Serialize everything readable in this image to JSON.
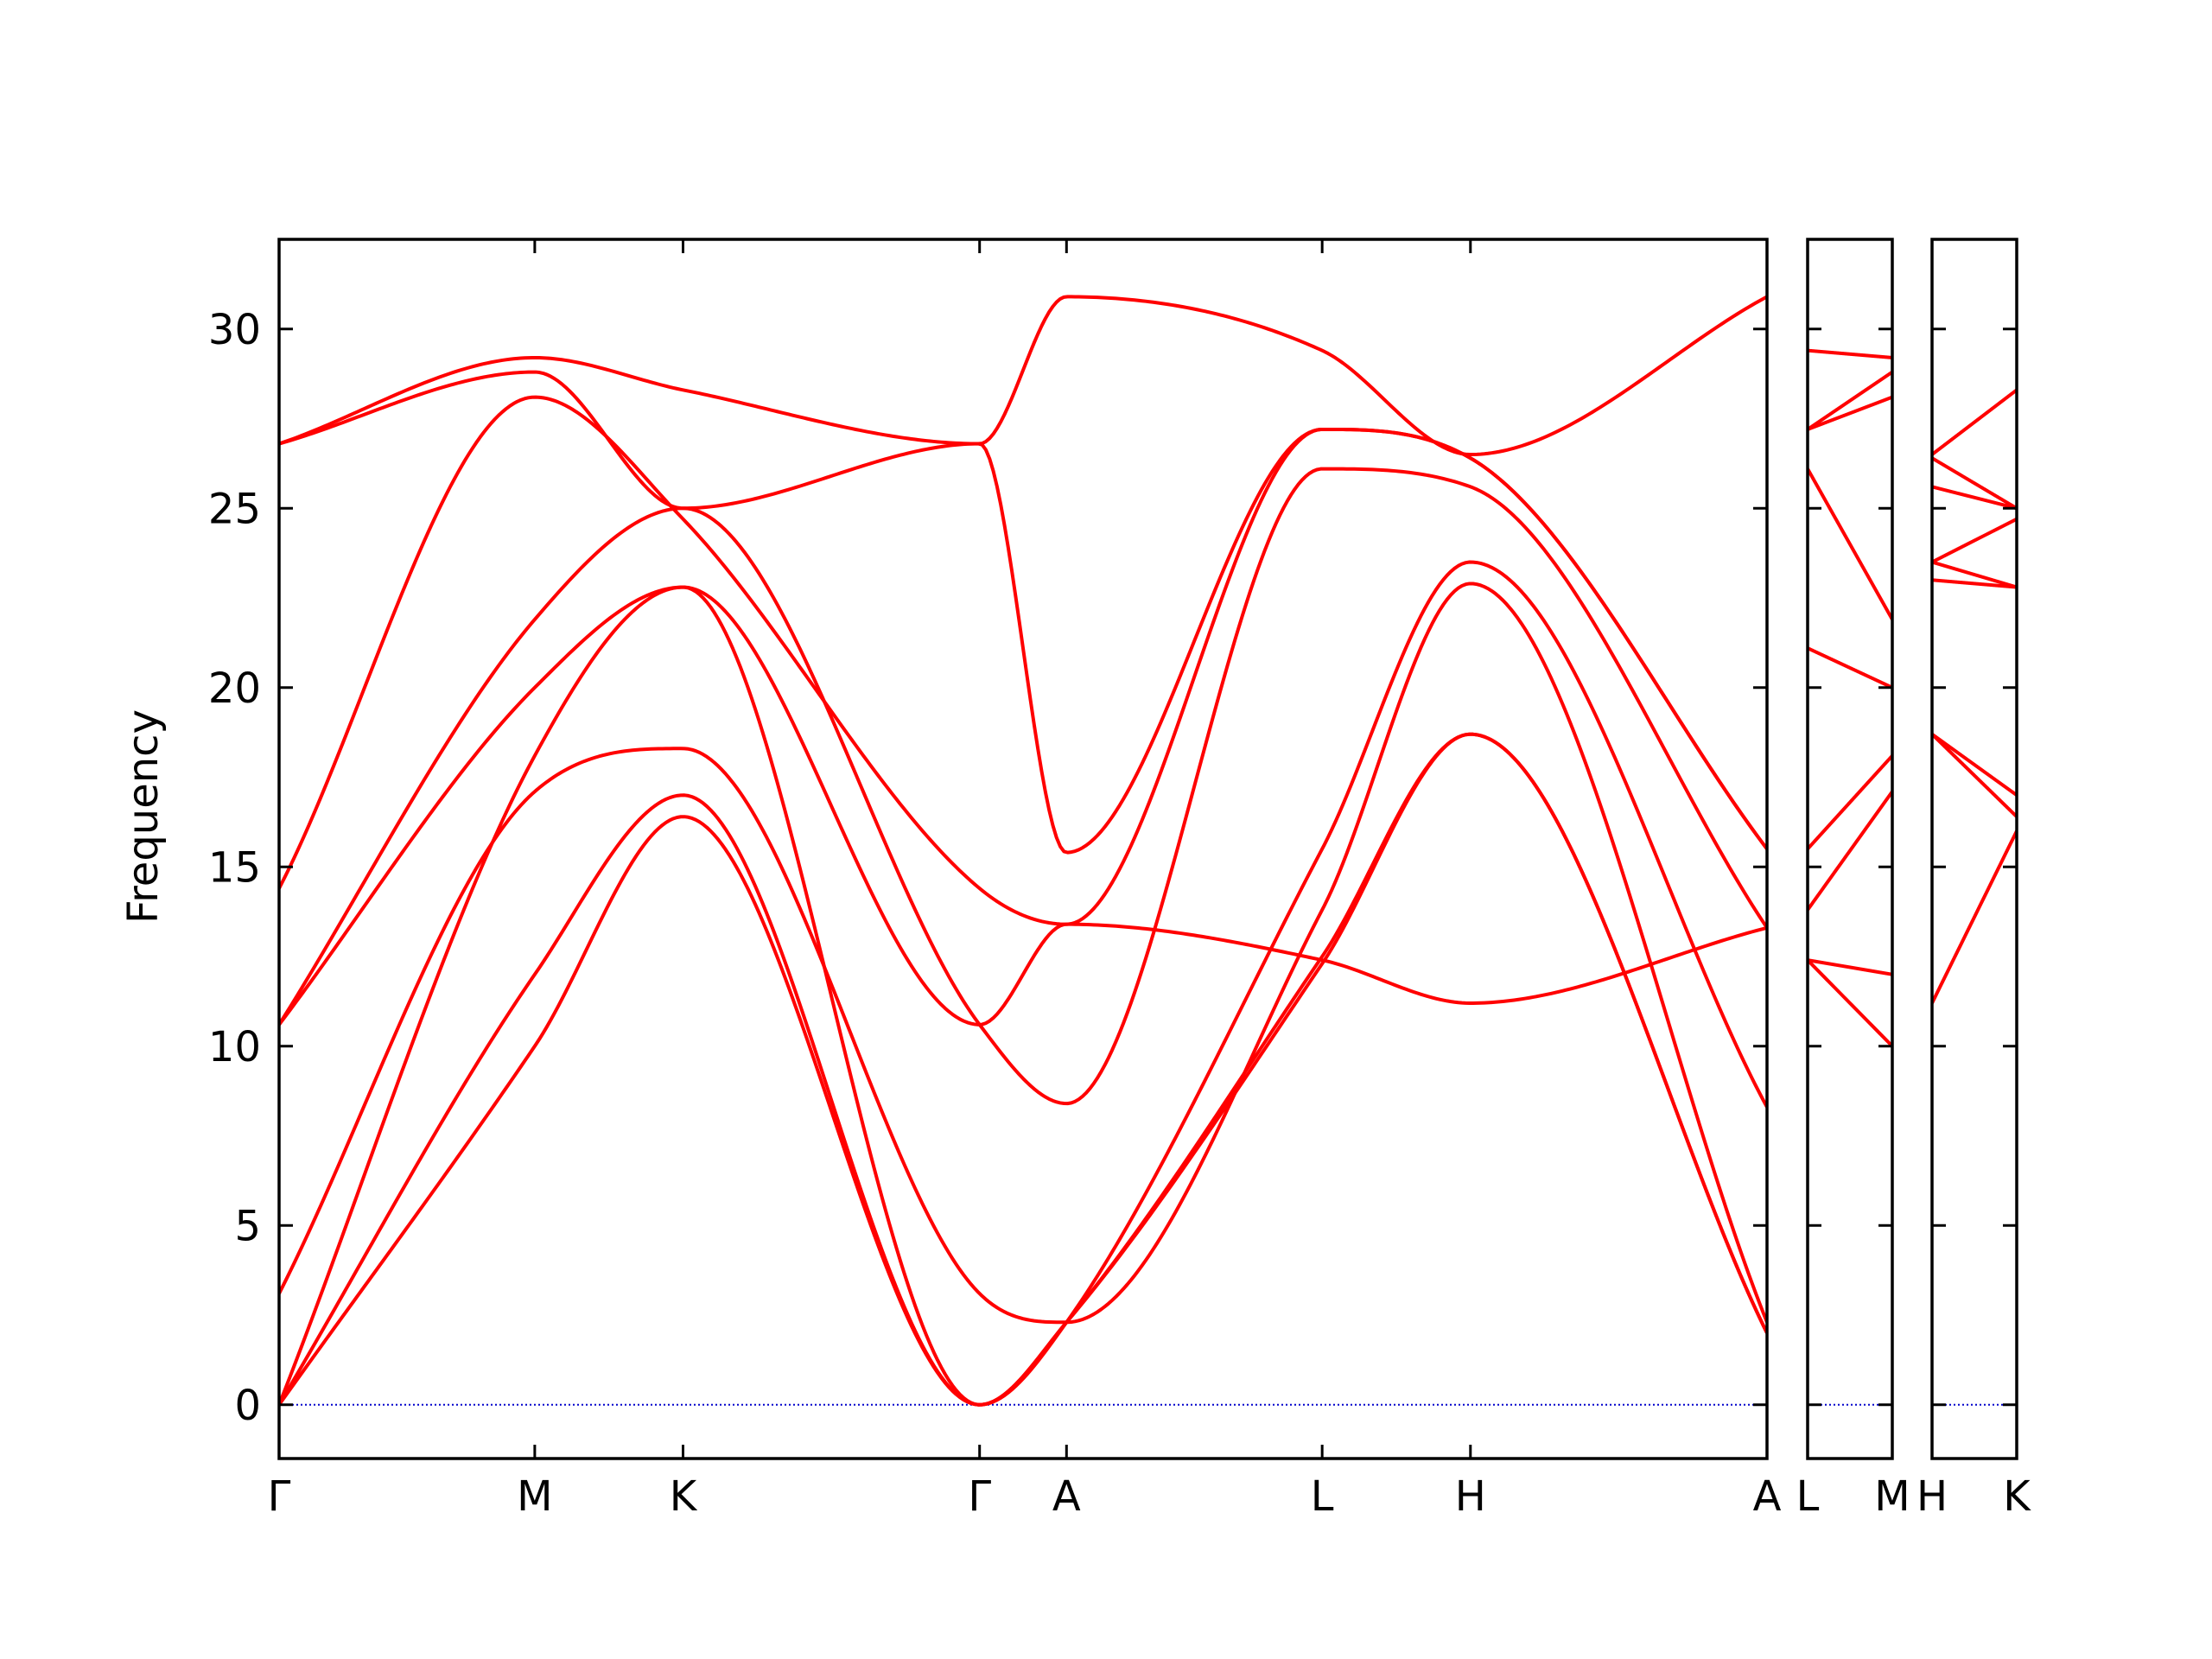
{
  "chart_data": {
    "type": "line",
    "title": "",
    "xlabel": "",
    "ylabel": "Frequency",
    "ylim": [
      -1.5,
      32.5
    ],
    "yticks": [
      0,
      5,
      10,
      15,
      20,
      25,
      30
    ],
    "grid": false,
    "legend": "none",
    "colors": {
      "bands": "#ff0000",
      "zero_line": "#0000cc",
      "axes": "#000000"
    },
    "panels": [
      {
        "name": "Γ-M-K-Γ-A-L-H-A",
        "x": [
          0,
          1,
          1.58,
          2.74,
          3.08,
          4.08,
          4.66,
          5.82
        ],
        "ticks": [
          {
            "x": 0,
            "label": "Γ"
          },
          {
            "x": 1,
            "label": "M"
          },
          {
            "x": 1.58,
            "label": "K"
          },
          {
            "x": 2.74,
            "label": "Γ"
          },
          {
            "x": 3.08,
            "label": "A"
          },
          {
            "x": 4.08,
            "label": "L"
          },
          {
            "x": 4.66,
            "label": "H"
          },
          {
            "x": 5.82,
            "label": "A"
          }
        ],
        "bands": [
          [
            0,
            10.0,
            16.4,
            0,
            2.3,
            12.5,
            18.7,
            2.0
          ],
          [
            0,
            12.0,
            17.0,
            0,
            2.3,
            12.3,
            18.7,
            2.0
          ],
          [
            3.1,
            17.1,
            18.3,
            3.1,
            2.3,
            13.8,
            22.9,
            2.3
          ],
          [
            0,
            18.1,
            22.8,
            0,
            2.3,
            15.5,
            23.5,
            8.3
          ],
          [
            10.6,
            20.0,
            22.8,
            10.6,
            13.4,
            12.4,
            11.2,
            13.3
          ],
          [
            10.6,
            21.9,
            25.0,
            10.6,
            8.4,
            26.1,
            25.6,
            13.3
          ],
          [
            14.4,
            28.1,
            24.7,
            14.4,
            13.4,
            27.2,
            26.4,
            15.5
          ],
          [
            26.8,
            28.8,
            25.0,
            26.8,
            15.4,
            27.2,
            26.4,
            15.5
          ],
          [
            26.8,
            29.2,
            28.3,
            26.8,
            30.9,
            29.4,
            26.5,
            30.9
          ]
        ]
      },
      {
        "name": "L-M",
        "x": [
          0,
          1
        ],
        "ticks": [
          {
            "x": 0,
            "label": "L"
          },
          {
            "x": 1,
            "label": "M"
          }
        ],
        "bands": [
          [
            12.4,
            10.0
          ],
          [
            12.4,
            12.0
          ],
          [
            13.8,
            17.1
          ],
          [
            15.5,
            18.1
          ],
          [
            21.1,
            20.0
          ],
          [
            26.1,
            21.9
          ],
          [
            27.2,
            28.1
          ],
          [
            27.2,
            28.8
          ],
          [
            29.4,
            29.2
          ]
        ]
      },
      {
        "name": "H-K",
        "x": [
          0,
          1
        ],
        "ticks": [
          {
            "x": 0,
            "label": "H"
          },
          {
            "x": 1,
            "label": "K"
          }
        ],
        "bands": [
          [
            11.2,
            16.0
          ],
          [
            18.7,
            16.4
          ],
          [
            18.7,
            17.0
          ],
          [
            23.0,
            22.8
          ],
          [
            23.5,
            22.8
          ],
          [
            23.5,
            24.7
          ],
          [
            25.6,
            25.0
          ],
          [
            26.4,
            25.0
          ],
          [
            26.5,
            28.3
          ]
        ]
      }
    ]
  }
}
